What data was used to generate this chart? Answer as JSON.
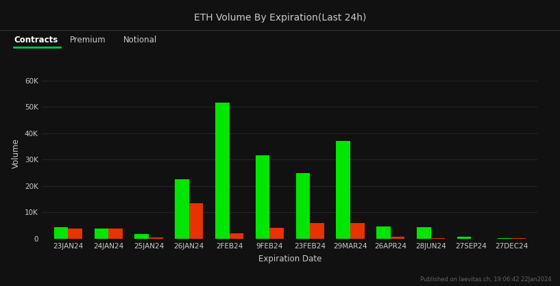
{
  "title": "ETH Volume By Expiration(Last 24h)",
  "xlabel": "Expiration Date",
  "ylabel": "Volume",
  "categories": [
    "23JAN24",
    "24JAN24",
    "25JAN24",
    "26JAN24",
    "2FEB24",
    "9FEB24",
    "23FEB24",
    "29MAR24",
    "26APR24",
    "28JUN24",
    "27SEP24",
    "27DEC24"
  ],
  "calls": [
    4500,
    3800,
    1800,
    22500,
    51500,
    31500,
    25000,
    37000,
    4800,
    4500,
    800,
    150
  ],
  "puts": [
    4000,
    3800,
    400,
    13500,
    2200,
    4200,
    6000,
    6000,
    900,
    300,
    100,
    150
  ],
  "calls_color": "#00e600",
  "puts_color": "#e63300",
  "bg_color": "#111111",
  "plot_bg_color": "#111111",
  "text_color": "#cccccc",
  "grid_color": "#2a2a2a",
  "ylim": [
    0,
    65000
  ],
  "yticks": [
    0,
    10000,
    20000,
    30000,
    40000,
    50000,
    60000
  ],
  "tab_labels": [
    "Contracts",
    "Premium",
    "Notional"
  ],
  "active_tab": "Contracts",
  "footer_text": "Published on laevitas.ch, 19:06:42 22Jan2024",
  "bar_width": 0.35,
  "header_sep_color": "#333333",
  "active_underline_color": "#00cc44"
}
